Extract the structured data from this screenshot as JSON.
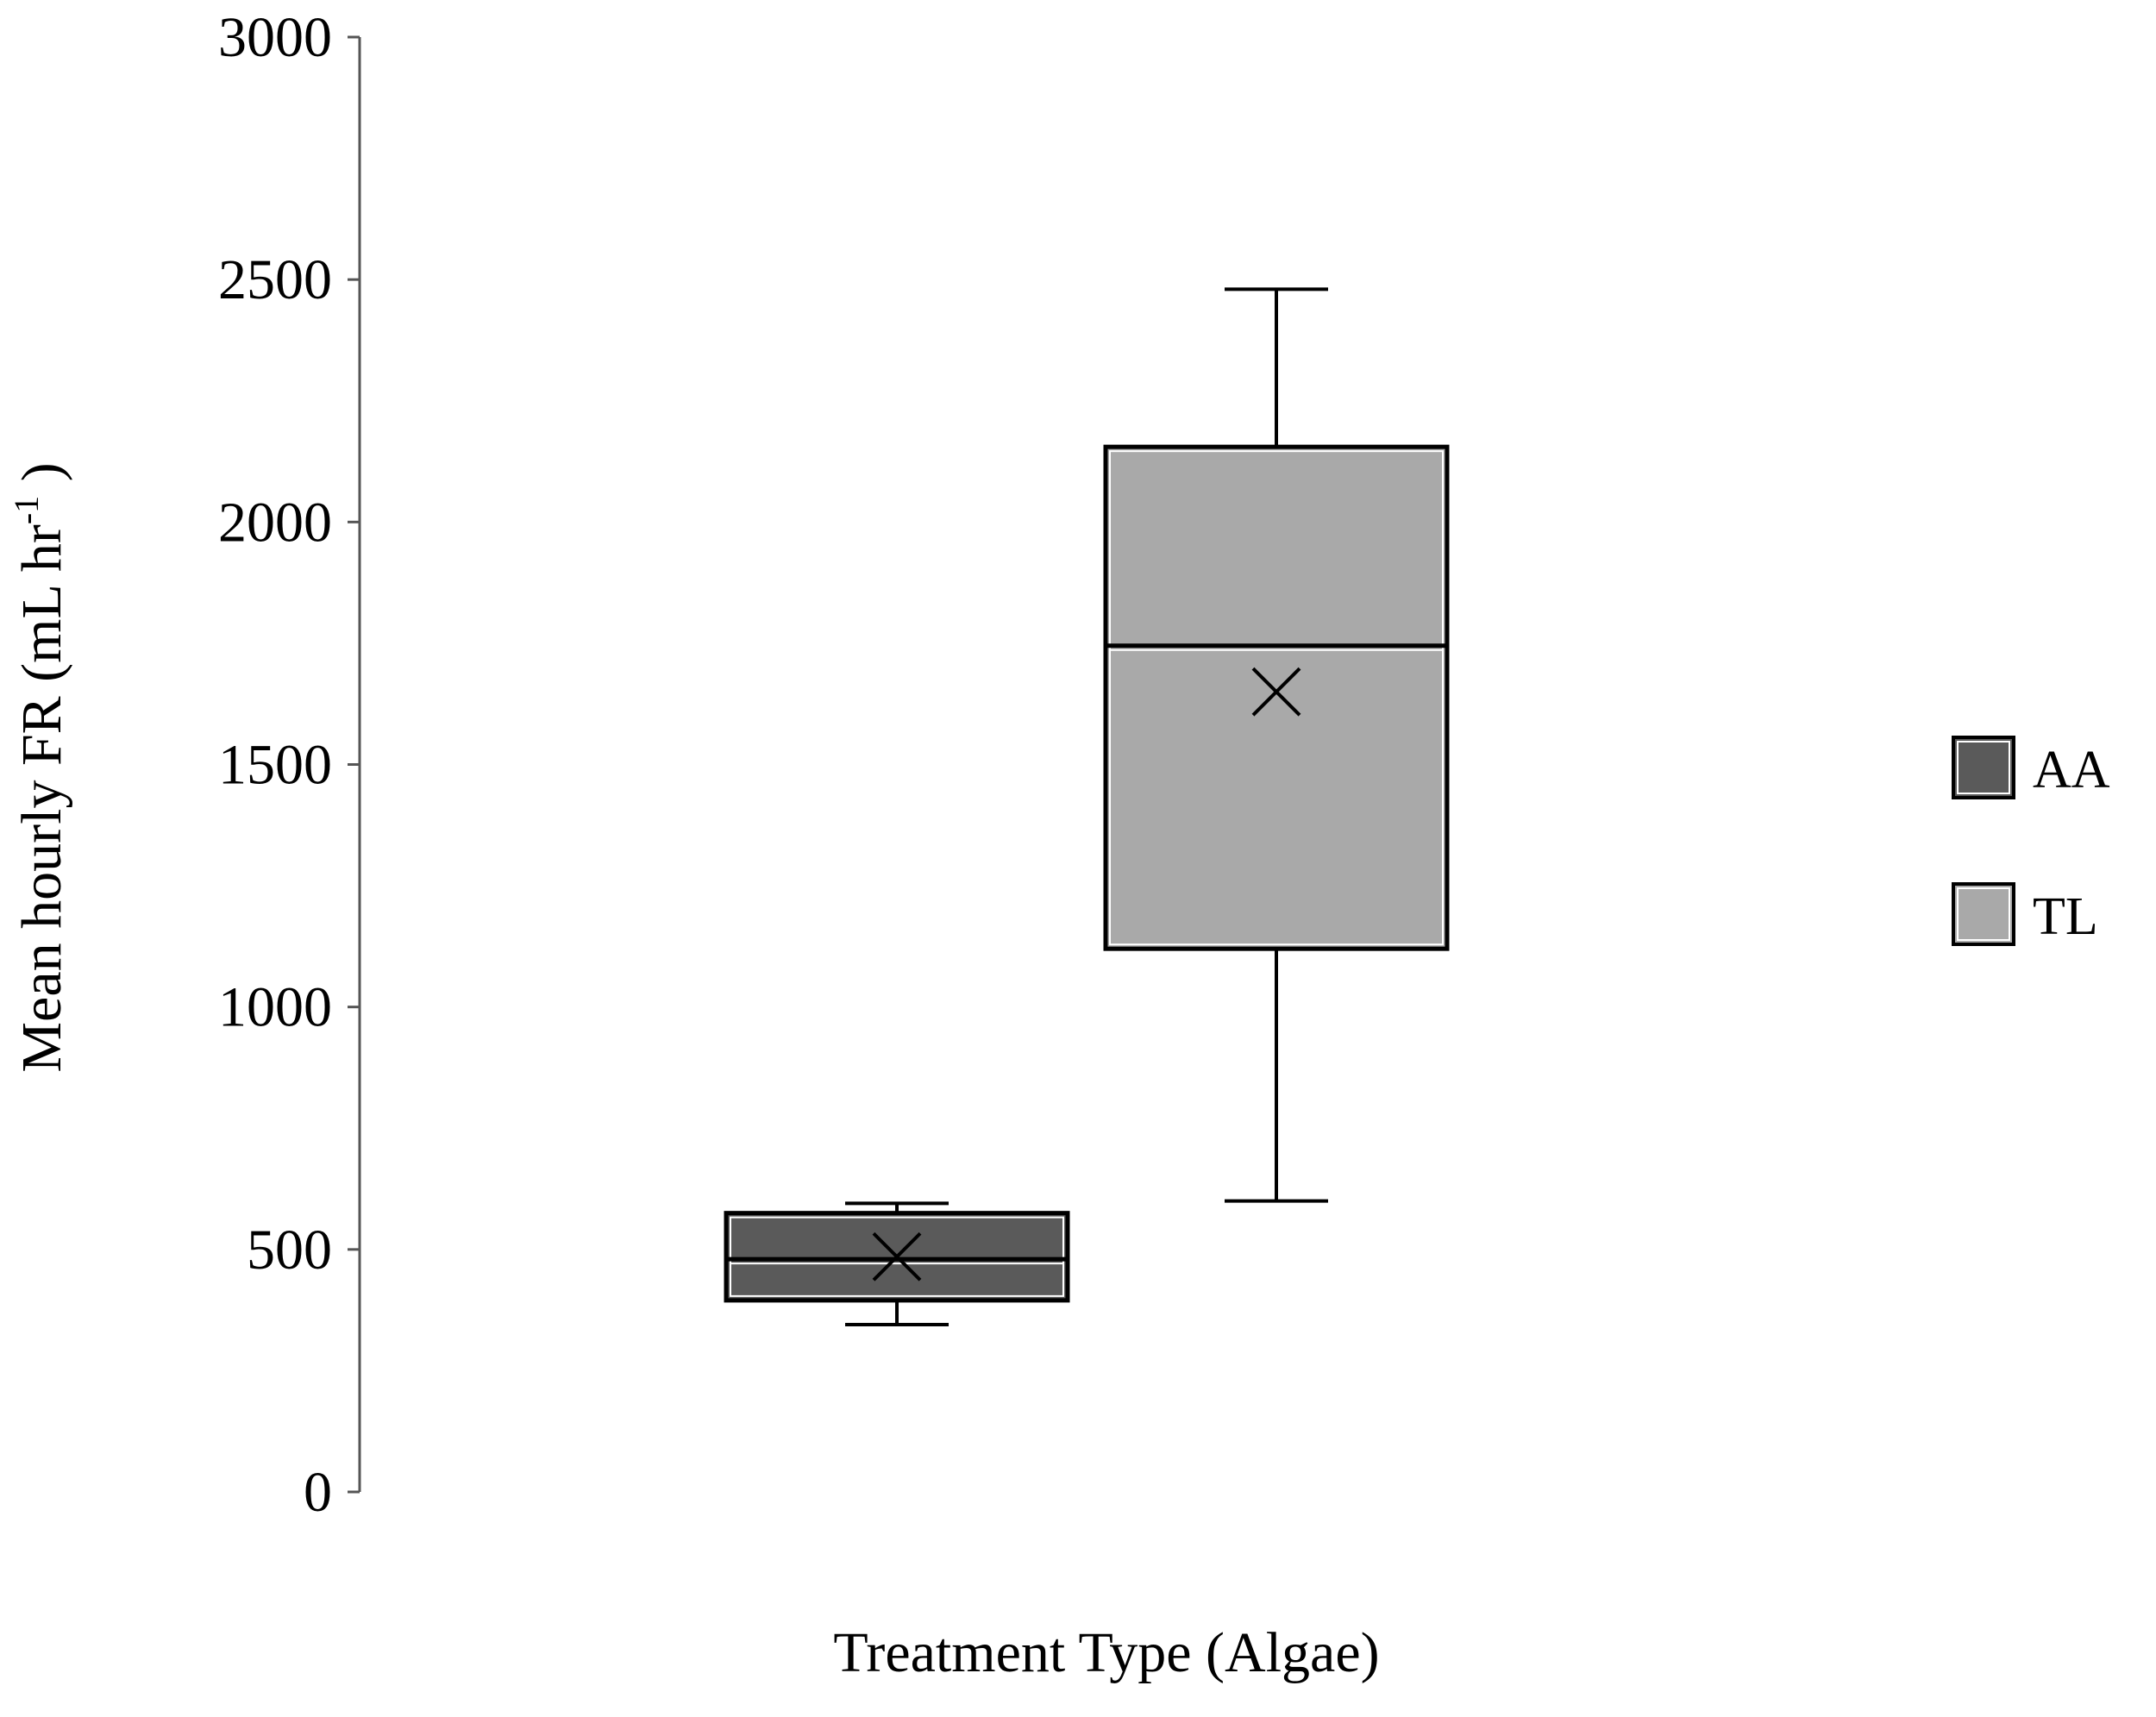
{
  "chart_data": {
    "type": "box",
    "title": "",
    "xlabel": "Treatment Type (Algae)",
    "ylabel_main": "Mean hourly FR (mL hr",
    "ylabel_sup": "-1",
    "ylabel_end": " )",
    "ylim": [
      0,
      3000
    ],
    "yticks": [
      "0",
      "500",
      "1000",
      "1500",
      "2000",
      "2500",
      "3000"
    ],
    "grid": false,
    "legend_position": "right",
    "series": [
      {
        "name": "AA",
        "color": "#5a5a5a",
        "whisker_low": 345,
        "q1": 395,
        "median": 480,
        "q3": 575,
        "whisker_high": 595,
        "mean": 485
      },
      {
        "name": "TL",
        "color": "#a9a9a9",
        "whisker_low": 600,
        "q1": 1120,
        "median": 1745,
        "q3": 2155,
        "whisker_high": 2480,
        "mean": 1650
      }
    ]
  }
}
